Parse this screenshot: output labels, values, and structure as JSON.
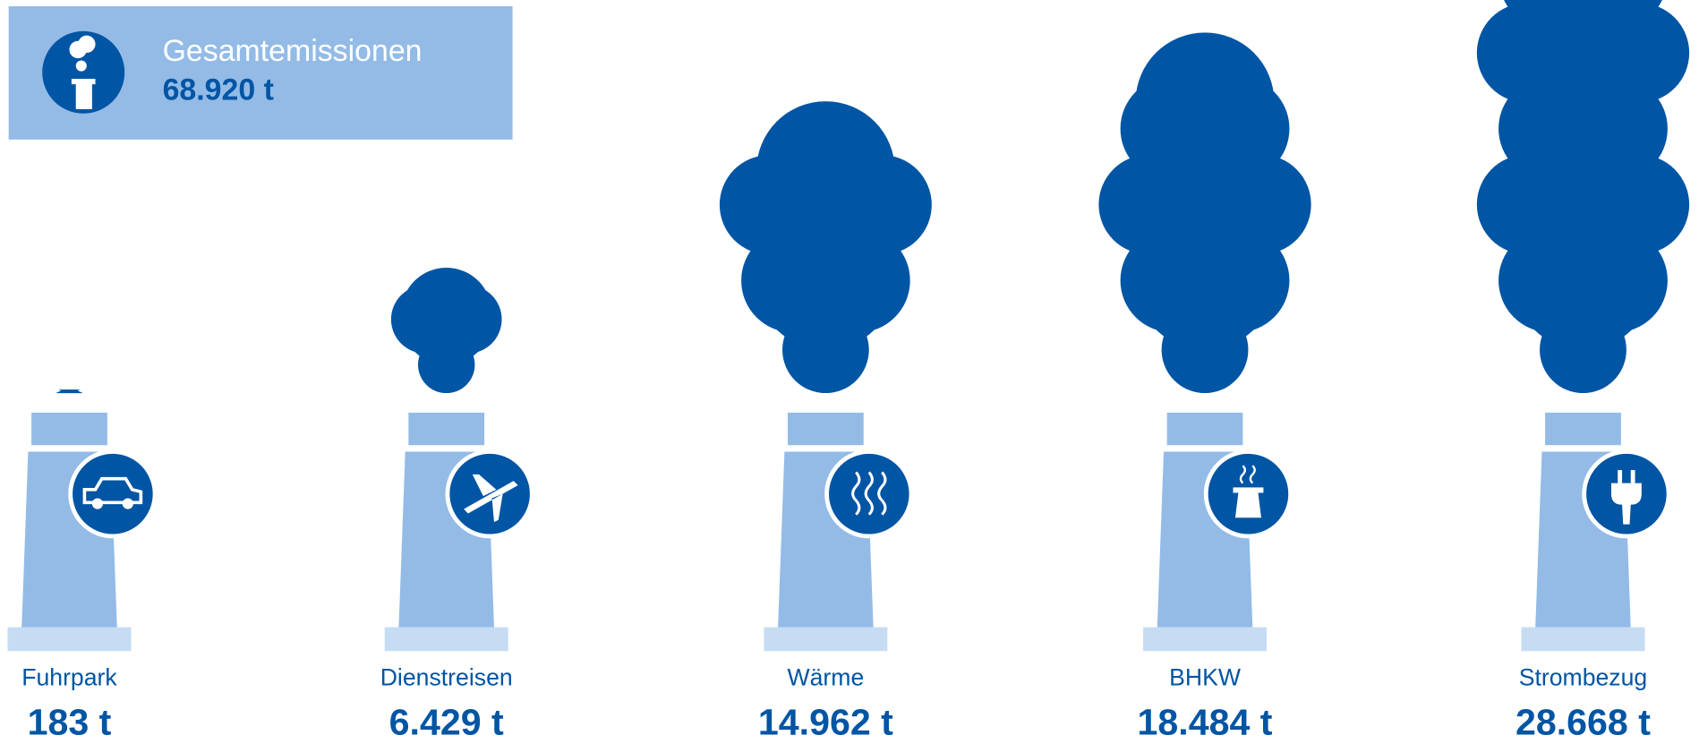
{
  "chart_data": {
    "type": "pictogram",
    "title": "Gesamtemissionen",
    "total": {
      "value": 68920,
      "label": "68.920 t"
    },
    "categories": [
      "Fuhrpark",
      "Dienstreisen",
      "Wärme",
      "BHKW",
      "Strombezug"
    ],
    "values": [
      183,
      6429,
      14962,
      18484,
      28668
    ],
    "value_labels": [
      "183 t",
      "6.429 t",
      "14.962 t",
      "18.484 t",
      "28.668 t"
    ],
    "color": "#0055a4",
    "chimney_color": "#93bbe6",
    "base_color": "#c6dcf3"
  }
}
